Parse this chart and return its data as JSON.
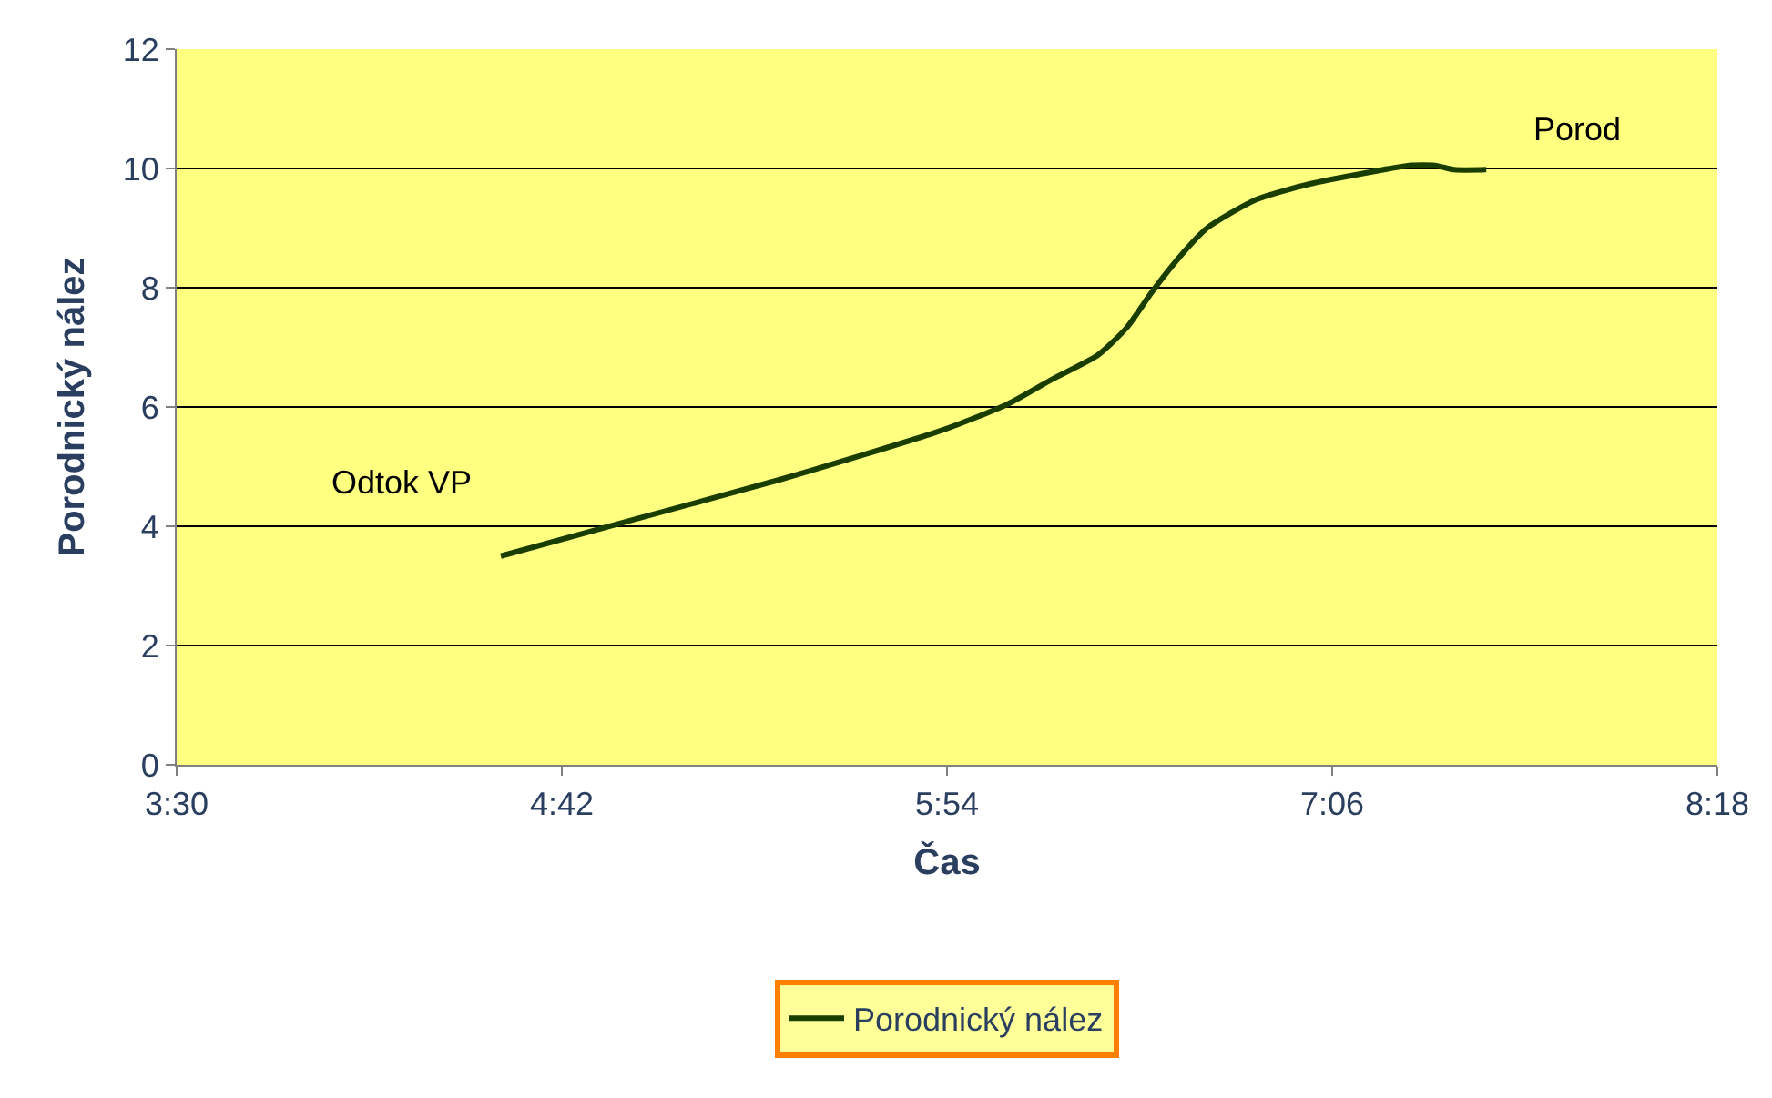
{
  "chart_data": {
    "type": "line",
    "xlabel": "Čas",
    "ylabel": "Porodnický nález",
    "x": [
      4.51,
      4.93,
      5.385,
      5.89,
      6.09,
      6.23,
      6.37,
      6.46,
      6.54,
      6.63,
      6.71,
      6.86,
      7.03,
      7.2,
      7.34,
      7.42,
      7.48,
      7.58
    ],
    "series": [
      {
        "name": "Porodnický nález",
        "color": "#1a3d00",
        "values": [
          3.5,
          4.12,
          4.79,
          5.62,
          6.05,
          6.47,
          6.87,
          7.33,
          7.94,
          8.55,
          9.0,
          9.47,
          9.74,
          9.92,
          10.05,
          10.05,
          9.98,
          9.98
        ]
      }
    ],
    "xlim": [
      3.5,
      8.3
    ],
    "xticks": [
      {
        "value": 3.5,
        "label": "3:30"
      },
      {
        "value": 4.7,
        "label": "4:42"
      },
      {
        "value": 5.9,
        "label": "5:54"
      },
      {
        "value": 7.1,
        "label": "7:06"
      },
      {
        "value": 8.3,
        "label": "8:18"
      }
    ],
    "ylim": [
      0,
      12
    ],
    "yticks": [
      0,
      2,
      4,
      6,
      8,
      10,
      12
    ],
    "grid": "y",
    "legend": "bottom",
    "marker": "none",
    "line_style": "solid",
    "annotations": [
      {
        "text": "Odtok VP",
        "x": 4.51,
        "y": 3.5
      },
      {
        "text": "Porod",
        "x": 7.58,
        "y": 9.98
      }
    ]
  }
}
